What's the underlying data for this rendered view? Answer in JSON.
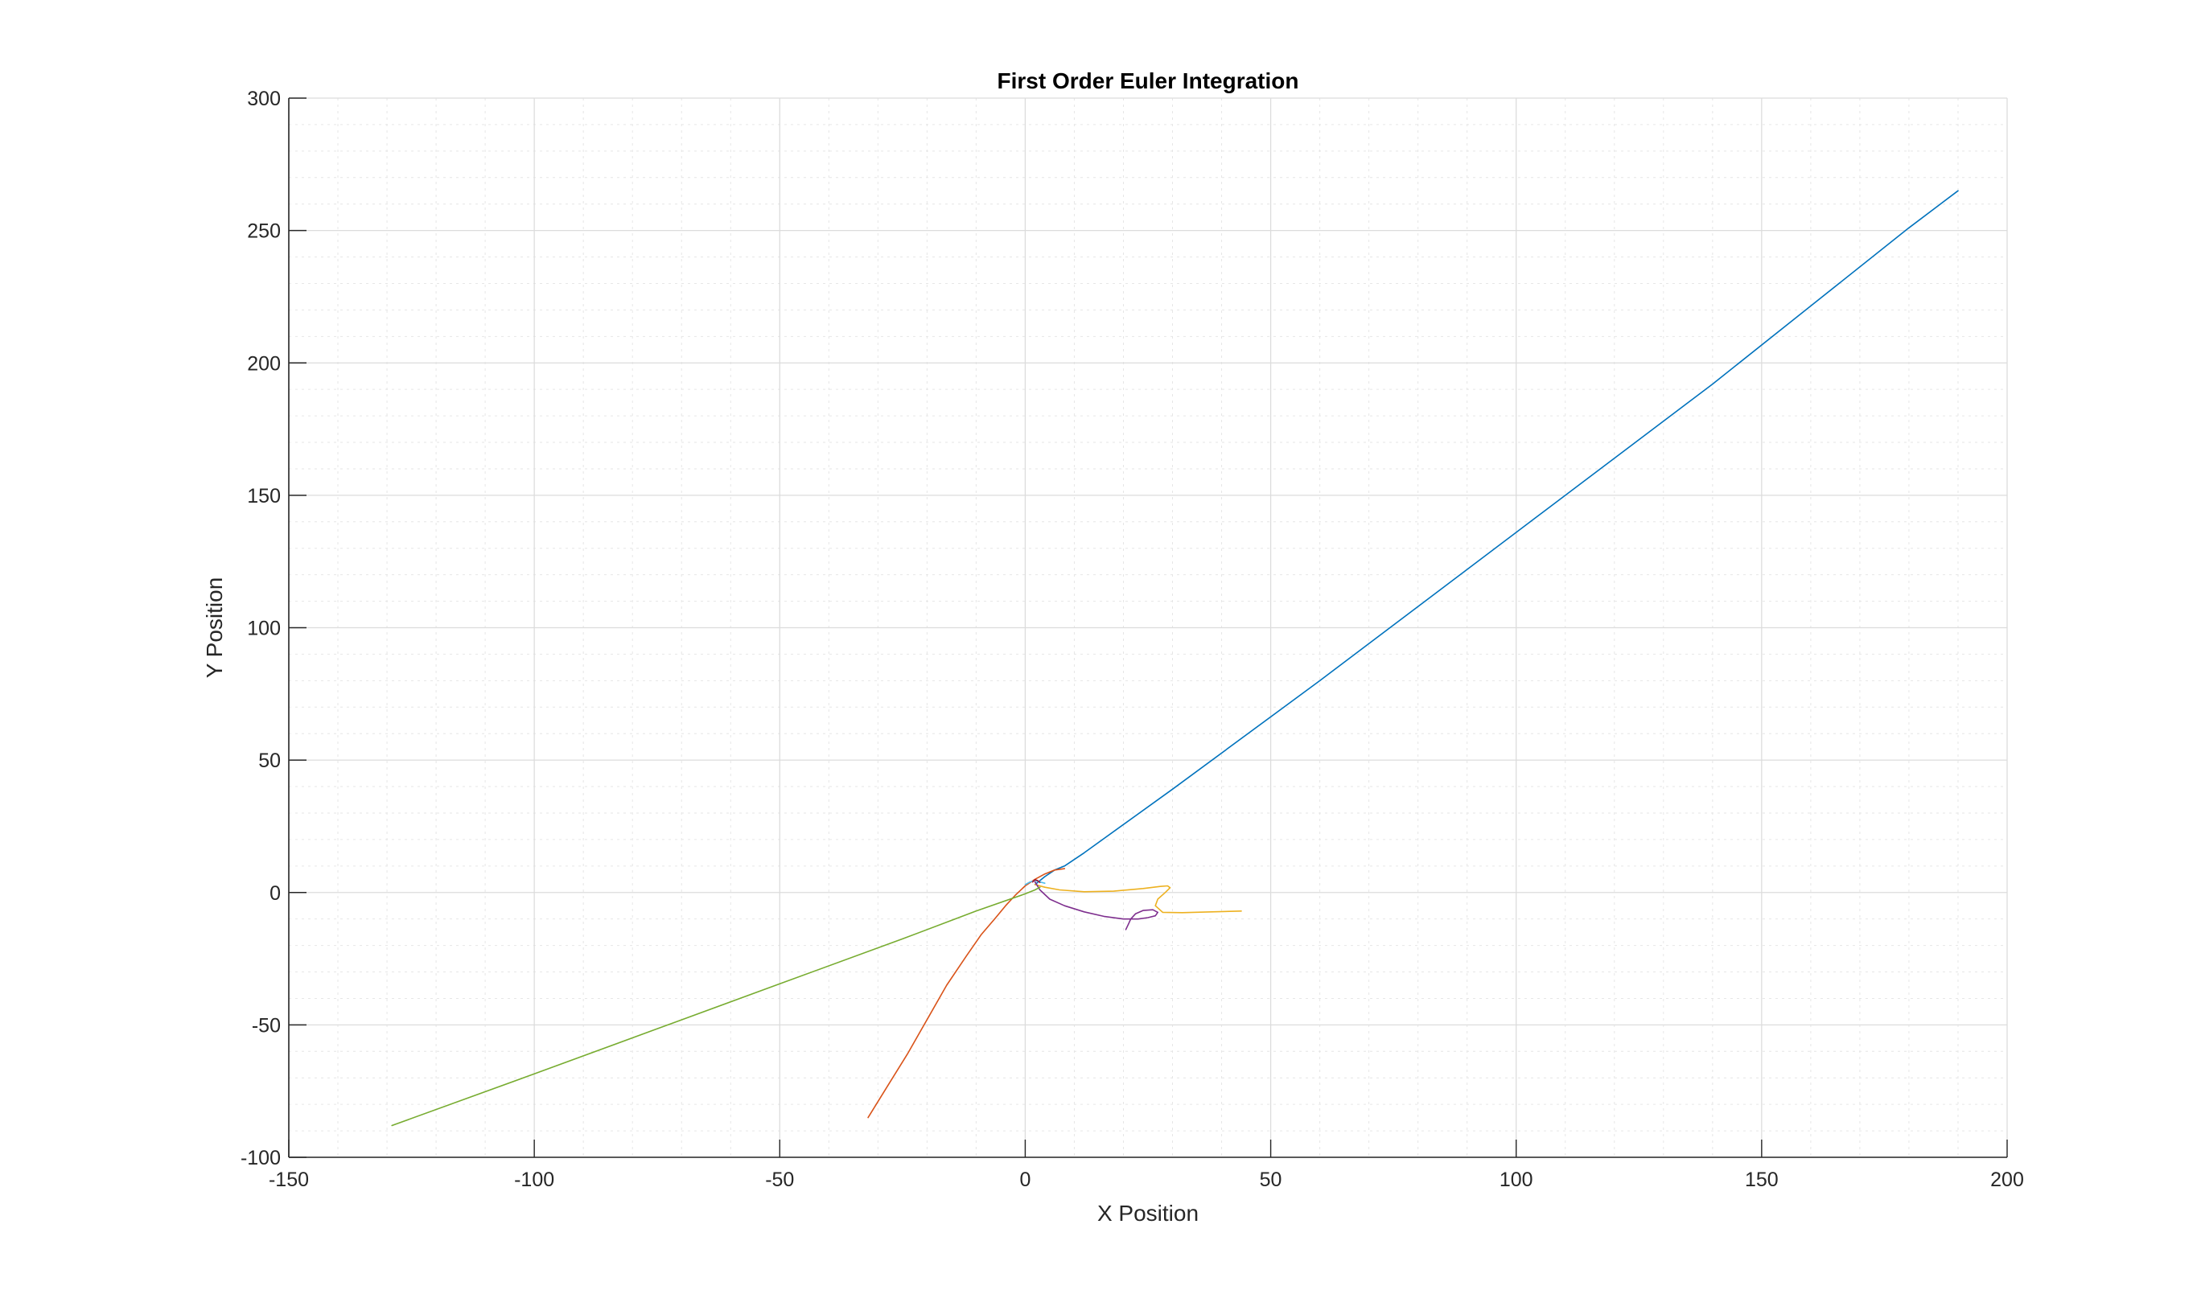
{
  "chart_data": {
    "type": "line",
    "title": "First Order Euler Integration",
    "xlabel": "X Position",
    "ylabel": "Y Position",
    "xlim": [
      -150,
      200
    ],
    "ylim": [
      -100,
      300
    ],
    "xticks": [
      -150,
      -100,
      -50,
      0,
      50,
      100,
      150,
      200
    ],
    "yticks": [
      -100,
      -50,
      0,
      50,
      100,
      150,
      200,
      250,
      300
    ],
    "x_tick_labels": [
      "-150",
      "-100",
      "-50",
      "0",
      "50",
      "100",
      "150",
      "200"
    ],
    "y_tick_labels": [
      "-100",
      "-50",
      "0",
      "50",
      "100",
      "150",
      "200",
      "250",
      "300"
    ],
    "grid": true,
    "minor_grid": true,
    "legend": "none",
    "series": [
      {
        "color": "#0072BD",
        "x": [
          2,
          4,
          6,
          8,
          12,
          30,
          60,
          100,
          140,
          180,
          190
        ],
        "y": [
          3,
          6,
          8.5,
          10,
          15,
          39,
          80,
          136,
          192,
          251,
          265
        ]
      },
      {
        "color": "#D95319",
        "x": [
          8,
          6,
          4,
          2,
          0,
          -2,
          -4,
          -6,
          -9,
          -12,
          -16,
          -20,
          -24,
          -28,
          -32
        ],
        "y": [
          9,
          8.5,
          7,
          5,
          2.5,
          -1,
          -5,
          -9.5,
          -16,
          -24,
          -35,
          -48,
          -61,
          -73,
          -85
        ]
      },
      {
        "color": "#EDB120",
        "x": [
          2,
          4,
          7,
          12,
          18,
          24,
          27.5,
          29,
          29.5,
          28.5,
          27,
          26.5,
          28,
          32,
          38,
          44
        ],
        "y": [
          3,
          2,
          1,
          0.3,
          0.5,
          1.5,
          2.3,
          2.5,
          1.8,
          0,
          -2.5,
          -5,
          -7.5,
          -7.6,
          -7.3,
          -7
        ]
      },
      {
        "color": "#7E2F8E",
        "x": [
          2,
          3,
          5,
          8,
          12,
          16,
          20,
          23,
          25,
          26.5,
          27,
          26,
          24,
          22.5,
          21.5,
          21,
          20.5
        ],
        "y": [
          4,
          1,
          -2.5,
          -5,
          -7.3,
          -9,
          -10,
          -10,
          -9.5,
          -8.8,
          -7.5,
          -6.5,
          -6.8,
          -8,
          -10,
          -12,
          -14
        ]
      },
      {
        "color": "#77AC30",
        "x": [
          -129,
          -100,
          -75,
          -50,
          -25,
          -10,
          0,
          2,
          3
        ],
        "y": [
          -88,
          -68.5,
          -51.5,
          -34.5,
          -17.5,
          -7,
          -0.5,
          1,
          2
        ]
      },
      {
        "color": "#4DBEEE",
        "x": [
          0,
          1,
          2,
          3,
          4
        ],
        "y": [
          3,
          4,
          4.5,
          4,
          3.5
        ]
      },
      {
        "color": "#A2142F",
        "x": [
          1.5,
          2,
          2.5,
          3
        ],
        "y": [
          4,
          4.8,
          4.5,
          3.8
        ]
      }
    ]
  }
}
